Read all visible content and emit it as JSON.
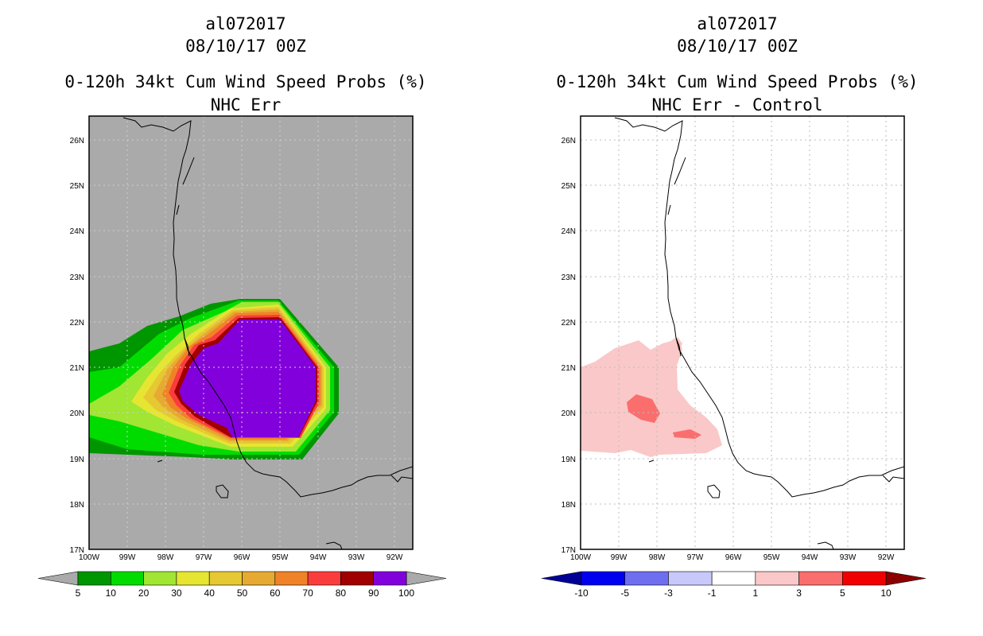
{
  "colors": {
    "land_bg": "#aaaaaa",
    "diff_bg": "#ffffff"
  },
  "panels": [
    {
      "storm_id": "al072017",
      "datetime": "08/10/17 00Z",
      "product": "0-120h 34kt Cum Wind Speed Probs (%)",
      "subtitle": "NHC Err",
      "lat_labels": [
        "26N",
        "25N",
        "24N",
        "23N",
        "22N",
        "21N",
        "20N",
        "19N",
        "18N",
        "17N"
      ],
      "lon_labels": [
        "100W",
        "99W",
        "98W",
        "97W",
        "96W",
        "95W",
        "94W",
        "93W",
        "92W"
      ],
      "colorbar": {
        "labels": [
          "5",
          "10",
          "20",
          "30",
          "40",
          "50",
          "60",
          "70",
          "80",
          "90",
          "100"
        ],
        "colors": [
          "#009600",
          "#00dc00",
          "#a0e632",
          "#e6e632",
          "#e6c832",
          "#e6aa32",
          "#f08228",
          "#fa3c3c",
          "#a00000",
          "#8200dc"
        ],
        "arrow_left": "#aaaaaa",
        "arrow_right": "#aaaaaa"
      }
    },
    {
      "storm_id": "al072017",
      "datetime": "08/10/17 00Z",
      "product": "0-120h 34kt Cum Wind Speed Probs (%)",
      "subtitle": "NHC Err - Control",
      "lat_labels": [
        "26N",
        "25N",
        "24N",
        "23N",
        "22N",
        "21N",
        "20N",
        "19N",
        "18N",
        "17N"
      ],
      "lon_labels": [
        "100W",
        "99W",
        "98W",
        "97W",
        "96W",
        "95W",
        "94W",
        "93W",
        "92W"
      ],
      "colorbar": {
        "labels": [
          "-10",
          "-5",
          "-3",
          "-1",
          "1",
          "3",
          "5",
          "10"
        ],
        "colors": [
          "#0000f0",
          "#6e6ef0",
          "#c8c8fa",
          "#ffffff",
          "#fac8c8",
          "#fa6e6e",
          "#f00000"
        ],
        "arrow_left": "#000096",
        "arrow_right": "#8c0000"
      }
    }
  ]
}
